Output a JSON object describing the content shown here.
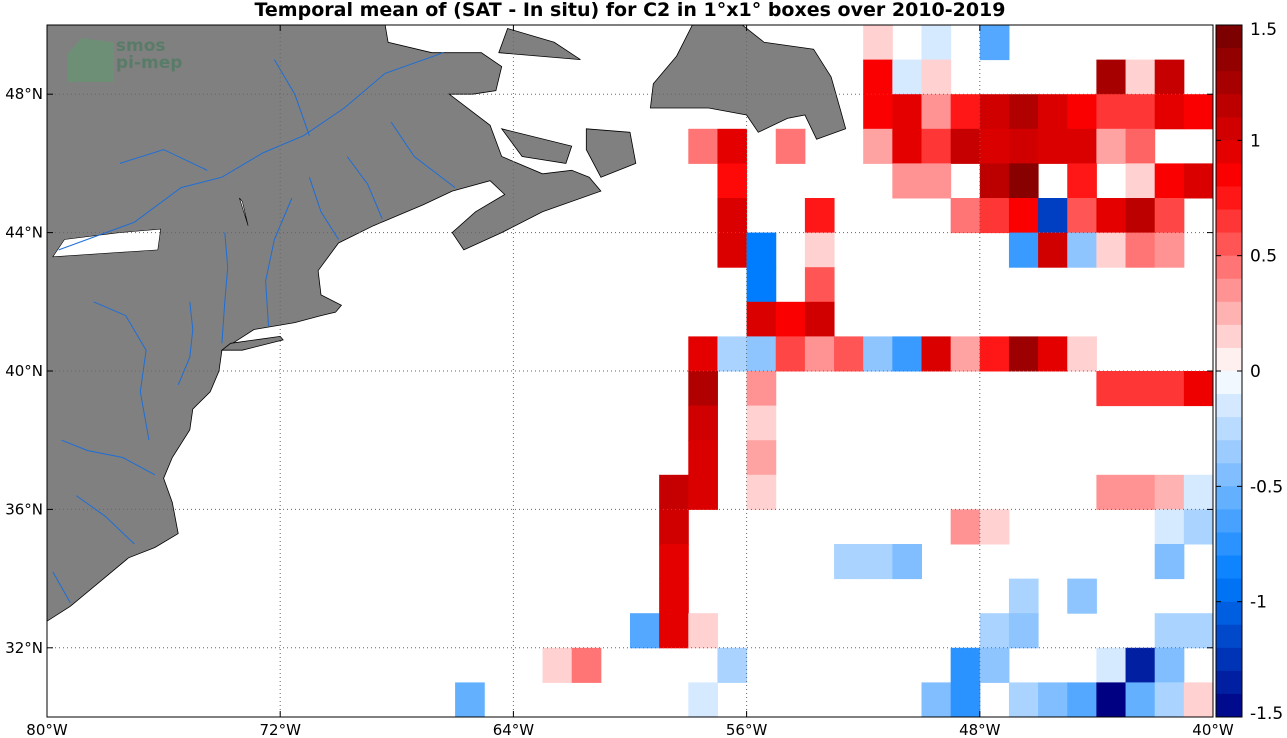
{
  "title": "Temporal mean of (SAT - In situ) for C2 in 1°x1° boxes over 2010-2019",
  "logo": {
    "line1": "smos",
    "line2": "pi-mep"
  },
  "colors": {
    "land": "#808080",
    "land_edge": "#000000",
    "river": "#1e6ed6",
    "grid": "#666666"
  },
  "colorbar": {
    "min": -1.5,
    "max": 1.5,
    "levels": 30,
    "ticks": [
      {
        "v": 1.5,
        "t": "1.5"
      },
      {
        "v": 1,
        "t": "1"
      },
      {
        "v": 0.5,
        "t": "0.5"
      },
      {
        "v": 0,
        "t": "0"
      },
      {
        "v": -0.5,
        "t": "-0.5"
      },
      {
        "v": -1,
        "t": "-1"
      },
      {
        "v": -1.5,
        "t": "-1.5"
      }
    ]
  },
  "chart_data": {
    "type": "heatmap",
    "projection": "lon-lat",
    "xlim": [
      -80,
      -40
    ],
    "ylim": [
      30,
      50
    ],
    "xticks": [
      {
        "v": -80,
        "t": "80°W"
      },
      {
        "v": -72,
        "t": "72°W"
      },
      {
        "v": -64,
        "t": "64°W"
      },
      {
        "v": -56,
        "t": "56°W"
      },
      {
        "v": -48,
        "t": "48°W"
      },
      {
        "v": -40,
        "t": "40°W"
      }
    ],
    "yticks": [
      {
        "v": 32,
        "t": "32°N"
      },
      {
        "v": 36,
        "t": "36°N"
      },
      {
        "v": 40,
        "t": "40°N"
      },
      {
        "v": 44,
        "t": "44°N"
      },
      {
        "v": 48,
        "t": "48°N"
      }
    ],
    "grid": true,
    "cells": [
      [
        -52,
        49,
        0.15
      ],
      [
        -50,
        49,
        -0.15
      ],
      [
        -48,
        49,
        -0.6
      ],
      [
        -52,
        48,
        0.85
      ],
      [
        -51,
        48,
        -0.15
      ],
      [
        -50,
        48,
        0.15
      ],
      [
        -44,
        48,
        1.25
      ],
      [
        -43,
        48,
        0.15
      ],
      [
        -42,
        48,
        1.1
      ],
      [
        -52,
        47,
        0.85
      ],
      [
        -51,
        47,
        0.95
      ],
      [
        -50,
        47,
        0.35
      ],
      [
        -49,
        47,
        0.75
      ],
      [
        -48,
        47,
        1.05
      ],
      [
        -47,
        47,
        1.2
      ],
      [
        -46,
        47,
        1.0
      ],
      [
        -45,
        47,
        0.85
      ],
      [
        -44,
        47,
        0.65
      ],
      [
        -43,
        47,
        0.65
      ],
      [
        -42,
        47,
        0.95
      ],
      [
        -41,
        47,
        0.85
      ],
      [
        -58,
        46,
        0.45
      ],
      [
        -57,
        46,
        0.95
      ],
      [
        -55,
        46,
        0.45
      ],
      [
        -52,
        46,
        0.3
      ],
      [
        -51,
        46,
        0.95
      ],
      [
        -50,
        46,
        0.65
      ],
      [
        -49,
        46,
        1.1
      ],
      [
        -48,
        46,
        1.0
      ],
      [
        -47,
        46,
        1.05
      ],
      [
        -46,
        46,
        1.0
      ],
      [
        -45,
        46,
        1.0
      ],
      [
        -44,
        46,
        0.3
      ],
      [
        -43,
        46,
        0.5
      ],
      [
        -57,
        45,
        0.8
      ],
      [
        -51,
        45,
        0.35
      ],
      [
        -50,
        45,
        0.35
      ],
      [
        -48,
        45,
        1.15
      ],
      [
        -47,
        45,
        1.4
      ],
      [
        -45,
        45,
        0.75
      ],
      [
        -43,
        45,
        0.15
      ],
      [
        -42,
        45,
        0.85
      ],
      [
        -41,
        45,
        1.0
      ],
      [
        -40,
        45,
        1.0
      ],
      [
        -57,
        44,
        1.0
      ],
      [
        -54,
        44,
        0.75
      ],
      [
        -49,
        44,
        0.45
      ],
      [
        -48,
        44,
        0.65
      ],
      [
        -47,
        44,
        0.85
      ],
      [
        -46,
        44,
        -1.2
      ],
      [
        -45,
        44,
        0.55
      ],
      [
        -44,
        44,
        0.95
      ],
      [
        -43,
        44,
        1.15
      ],
      [
        -42,
        44,
        0.6
      ],
      [
        -57,
        43,
        1.0
      ],
      [
        -56,
        43,
        -0.9
      ],
      [
        -54,
        43,
        0.15
      ],
      [
        -47,
        43,
        -0.7
      ],
      [
        -46,
        43,
        1.05
      ],
      [
        -45,
        43,
        -0.4
      ],
      [
        -44,
        43,
        0.15
      ],
      [
        -43,
        43,
        0.45
      ],
      [
        -42,
        43,
        0.35
      ],
      [
        -56,
        42,
        -0.9
      ],
      [
        -54,
        42,
        0.55
      ],
      [
        -56,
        41,
        1.0
      ],
      [
        -55,
        41,
        0.85
      ],
      [
        -54,
        41,
        1.05
      ],
      [
        -58,
        40,
        0.95
      ],
      [
        -57,
        40,
        -0.3
      ],
      [
        -56,
        40,
        -0.4
      ],
      [
        -55,
        40,
        0.6
      ],
      [
        -54,
        40,
        0.35
      ],
      [
        -53,
        40,
        0.55
      ],
      [
        -52,
        40,
        -0.4
      ],
      [
        -51,
        40,
        -0.7
      ],
      [
        -50,
        40,
        1.0
      ],
      [
        -49,
        40,
        0.3
      ],
      [
        -48,
        40,
        0.75
      ],
      [
        -47,
        40,
        1.3
      ],
      [
        -46,
        40,
        0.95
      ],
      [
        -45,
        40,
        0.15
      ],
      [
        -58,
        39,
        1.2
      ],
      [
        -56,
        39,
        0.35
      ],
      [
        -44,
        39,
        0.65
      ],
      [
        -43,
        39,
        0.65
      ],
      [
        -42,
        39,
        0.65
      ],
      [
        -41,
        39,
        0.9
      ],
      [
        -40,
        39,
        0.55
      ],
      [
        -58,
        38,
        1.05
      ],
      [
        -56,
        38,
        0.15
      ],
      [
        -58,
        37,
        1.0
      ],
      [
        -56,
        37,
        0.3
      ],
      [
        -59,
        36,
        1.1
      ],
      [
        -58,
        36,
        1.0
      ],
      [
        -56,
        36,
        0.15
      ],
      [
        -44,
        36,
        0.35
      ],
      [
        -43,
        36,
        0.35
      ],
      [
        -42,
        36,
        0.25
      ],
      [
        -41,
        36,
        -0.15
      ],
      [
        -59,
        35,
        1.05
      ],
      [
        -49,
        35,
        0.35
      ],
      [
        -48,
        35,
        0.15
      ],
      [
        -42,
        35,
        -0.15
      ],
      [
        -41,
        35,
        -0.3
      ],
      [
        -59,
        34,
        0.95
      ],
      [
        -53,
        34,
        -0.3
      ],
      [
        -52,
        34,
        -0.3
      ],
      [
        -51,
        34,
        -0.45
      ],
      [
        -42,
        34,
        -0.45
      ],
      [
        -59,
        33,
        0.95
      ],
      [
        -47,
        33,
        -0.3
      ],
      [
        -45,
        33,
        -0.4
      ],
      [
        -60,
        32,
        -0.6
      ],
      [
        -59,
        32,
        0.95
      ],
      [
        -58,
        32,
        0.15
      ],
      [
        -48,
        32,
        -0.3
      ],
      [
        -47,
        32,
        -0.4
      ],
      [
        -42,
        32,
        -0.3
      ],
      [
        -41,
        32,
        -0.3
      ],
      [
        -40,
        32,
        -0.3
      ],
      [
        -63,
        31,
        0.15
      ],
      [
        -62,
        31,
        0.45
      ],
      [
        -57,
        31,
        -0.3
      ],
      [
        -49,
        31,
        -0.75
      ],
      [
        -48,
        31,
        -0.4
      ],
      [
        -44,
        31,
        -0.15
      ],
      [
        -43,
        31,
        -1.35
      ],
      [
        -42,
        31,
        -0.45
      ],
      [
        -40,
        31,
        -0.15
      ],
      [
        -66,
        30,
        -0.55
      ],
      [
        -58,
        30,
        -0.15
      ],
      [
        -50,
        30,
        -0.45
      ],
      [
        -49,
        30,
        -0.75
      ],
      [
        -47,
        30,
        -0.3
      ],
      [
        -46,
        30,
        -0.45
      ],
      [
        -45,
        30,
        -0.6
      ],
      [
        -44,
        30,
        -1.5
      ],
      [
        -43,
        30,
        -0.55
      ],
      [
        -42,
        30,
        -0.3
      ],
      [
        -41,
        30,
        0.15
      ]
    ]
  }
}
